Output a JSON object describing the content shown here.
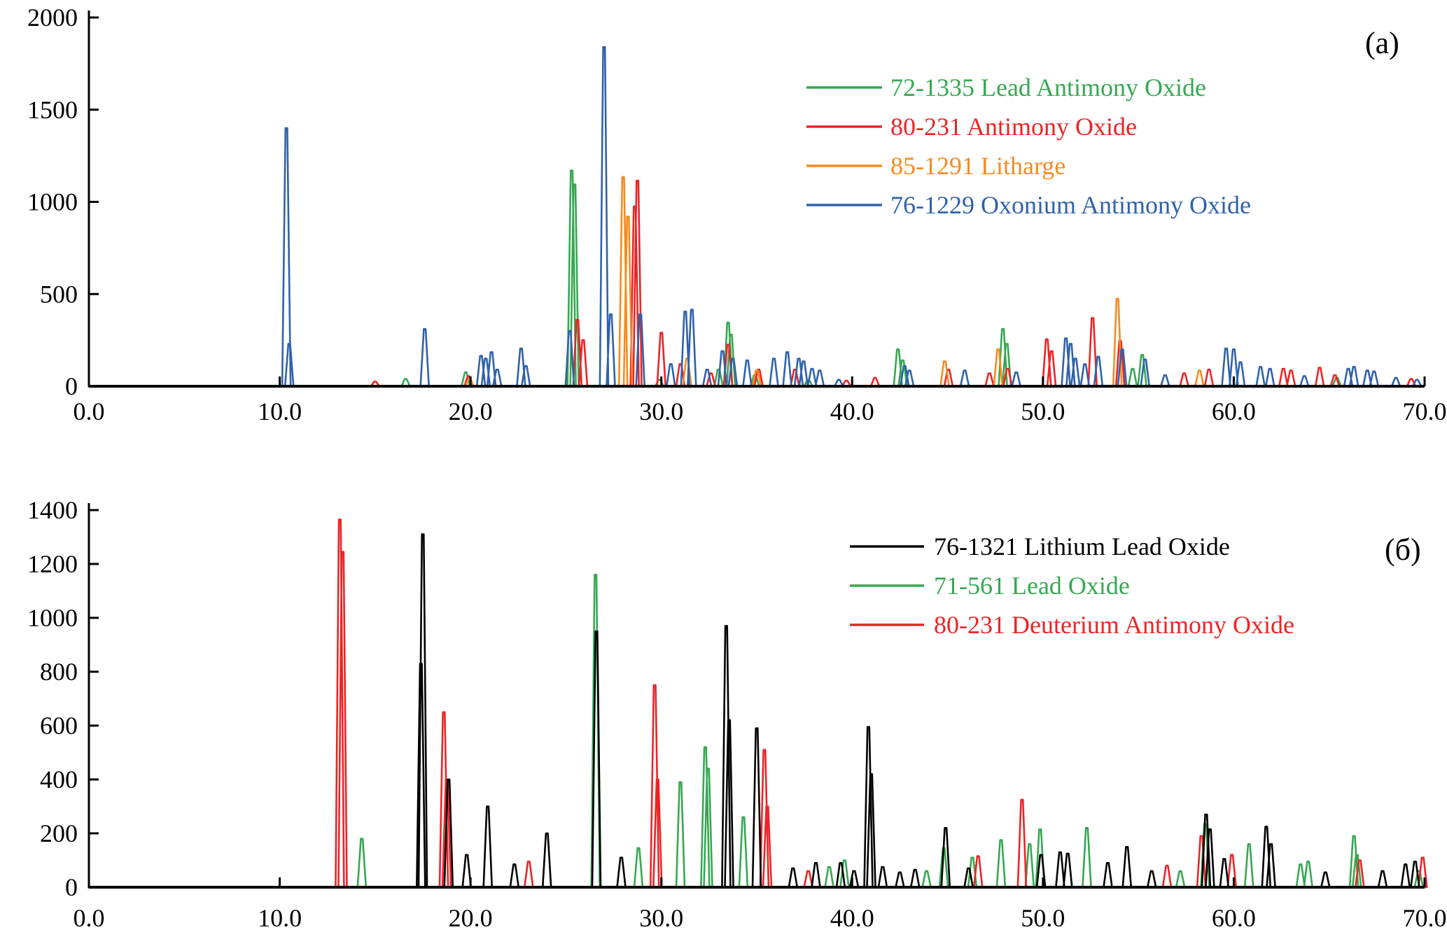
{
  "page": {
    "background": "#ffffff"
  },
  "chart_data": [
    {
      "id": "a",
      "type": "line",
      "panel_label": "(a)",
      "xlabel": "",
      "ylabel": "",
      "x_range": [
        0,
        70
      ],
      "y_range": [
        0,
        2000
      ],
      "x_ticks": [
        "0.0",
        "10.0",
        "20.0",
        "30.0",
        "40.0",
        "50.0",
        "60.0",
        "70.0"
      ],
      "y_ticks": [
        "0",
        "500",
        "1000",
        "1500",
        "2000"
      ],
      "grid": "off",
      "legend_position": "upper-right-inside",
      "legend": [
        {
          "label": "72-1335 Lead Antimony Oxide",
          "color": "#36a852"
        },
        {
          "label": "80-231 Antimony Oxide",
          "color": "#ec2426"
        },
        {
          "label": "85-1291 Litharge",
          "color": "#f68b1f"
        },
        {
          "label": "76-1229 Oxonium Antimony Oxide",
          "color": "#2f62ab"
        }
      ],
      "series": [
        {
          "name": "72-1335 Lead Antimony Oxide",
          "color": "#36a852",
          "peaks": [
            [
              16.6,
              40
            ],
            [
              19.75,
              75
            ],
            [
              25.3,
              1170
            ],
            [
              25.45,
              1095
            ],
            [
              29.9,
              35
            ],
            [
              33.0,
              90
            ],
            [
              33.5,
              345
            ],
            [
              33.65,
              280
            ],
            [
              34.9,
              60
            ],
            [
              37.7,
              35
            ],
            [
              42.4,
              200
            ],
            [
              42.65,
              140
            ],
            [
              47.9,
              310
            ],
            [
              48.1,
              230
            ],
            [
              54.7,
              95
            ],
            [
              55.2,
              170
            ],
            [
              65.4,
              45
            ]
          ]
        },
        {
          "name": "80-231 Antimony Oxide",
          "color": "#ec2426",
          "peaks": [
            [
              15.0,
              25
            ],
            [
              19.9,
              55
            ],
            [
              25.6,
              360
            ],
            [
              25.9,
              250
            ],
            [
              28.6,
              975
            ],
            [
              28.75,
              1115
            ],
            [
              30.0,
              290
            ],
            [
              31.0,
              120
            ],
            [
              32.6,
              70
            ],
            [
              33.5,
              225
            ],
            [
              35.1,
              90
            ],
            [
              37.0,
              90
            ],
            [
              39.7,
              30
            ],
            [
              41.2,
              45
            ],
            [
              45.05,
              90
            ],
            [
              47.2,
              70
            ],
            [
              48.15,
              95
            ],
            [
              50.2,
              255
            ],
            [
              50.45,
              190
            ],
            [
              52.6,
              370
            ],
            [
              54.05,
              245
            ],
            [
              57.4,
              70
            ],
            [
              58.7,
              90
            ],
            [
              62.6,
              95
            ],
            [
              63.0,
              85
            ],
            [
              64.5,
              100
            ],
            [
              65.3,
              60
            ],
            [
              69.3,
              40
            ]
          ]
        },
        {
          "name": "85-1291 Litharge",
          "color": "#f68b1f",
          "peaks": [
            [
              19.95,
              40
            ],
            [
              28.0,
              1135
            ],
            [
              28.25,
              920
            ],
            [
              31.35,
              150
            ],
            [
              35.0,
              85
            ],
            [
              44.85,
              135
            ],
            [
              47.65,
              200
            ],
            [
              53.9,
              475
            ],
            [
              58.2,
              85
            ]
          ]
        },
        {
          "name": "76-1229 Oxonium Antimony Oxide",
          "color": "#2f62ab",
          "peaks": [
            [
              10.35,
              1400
            ],
            [
              10.5,
              230
            ],
            [
              17.6,
              310
            ],
            [
              20.55,
              165
            ],
            [
              20.8,
              150
            ],
            [
              21.1,
              185
            ],
            [
              21.4,
              90
            ],
            [
              22.65,
              205
            ],
            [
              22.9,
              110
            ],
            [
              25.2,
              300
            ],
            [
              27.0,
              1840
            ],
            [
              27.35,
              390
            ],
            [
              28.9,
              390
            ],
            [
              30.5,
              120
            ],
            [
              31.25,
              405
            ],
            [
              31.6,
              415
            ],
            [
              32.4,
              90
            ],
            [
              33.2,
              190
            ],
            [
              33.75,
              150
            ],
            [
              34.5,
              140
            ],
            [
              35.9,
              150
            ],
            [
              36.6,
              185
            ],
            [
              37.2,
              150
            ],
            [
              37.45,
              135
            ],
            [
              37.9,
              95
            ],
            [
              38.3,
              85
            ],
            [
              39.3,
              35
            ],
            [
              42.75,
              110
            ],
            [
              43.0,
              85
            ],
            [
              45.9,
              85
            ],
            [
              48.6,
              75
            ],
            [
              51.2,
              260
            ],
            [
              51.45,
              230
            ],
            [
              51.7,
              150
            ],
            [
              52.2,
              120
            ],
            [
              52.9,
              160
            ],
            [
              54.15,
              200
            ],
            [
              55.35,
              145
            ],
            [
              56.4,
              60
            ],
            [
              59.6,
              205
            ],
            [
              60.0,
              200
            ],
            [
              60.35,
              130
            ],
            [
              61.4,
              105
            ],
            [
              61.9,
              95
            ],
            [
              63.7,
              55
            ],
            [
              66.0,
              95
            ],
            [
              66.3,
              105
            ],
            [
              67.0,
              85
            ],
            [
              67.35,
              80
            ],
            [
              68.5,
              45
            ],
            [
              69.6,
              35
            ]
          ]
        }
      ]
    },
    {
      "id": "b",
      "type": "line",
      "panel_label": "(б)",
      "xlabel": "",
      "ylabel": "",
      "x_range": [
        0,
        70
      ],
      "y_range": [
        0,
        1400
      ],
      "x_ticks": [
        "0.0",
        "10.0",
        "20.0",
        "30.0",
        "40.0",
        "50.0",
        "60.0",
        "70.0"
      ],
      "y_ticks": [
        "0",
        "200",
        "400",
        "600",
        "800",
        "1000",
        "1200",
        "1400"
      ],
      "grid": "off",
      "legend_position": "upper-right-inside",
      "legend": [
        {
          "label": "76-1321 Lithium Lead Oxide",
          "color": "#000000"
        },
        {
          "label": "71-561 Lead Oxide",
          "color": "#36a852"
        },
        {
          "label": "80-231 Deuterium Antimony Oxide",
          "color": "#ec2426"
        }
      ],
      "series": [
        {
          "name": "71-561 Lead Oxide",
          "color": "#36a852",
          "peaks": [
            [
              14.3,
              180
            ],
            [
              26.55,
              1160
            ],
            [
              28.8,
              145
            ],
            [
              31.0,
              390
            ],
            [
              32.3,
              520
            ],
            [
              32.45,
              440
            ],
            [
              34.3,
              260
            ],
            [
              38.8,
              75
            ],
            [
              39.6,
              100
            ],
            [
              43.9,
              60
            ],
            [
              44.8,
              145
            ],
            [
              46.3,
              110
            ],
            [
              47.8,
              175
            ],
            [
              49.3,
              160
            ],
            [
              49.85,
              215
            ],
            [
              52.3,
              220
            ],
            [
              57.2,
              60
            ],
            [
              58.5,
              235
            ],
            [
              60.8,
              160
            ],
            [
              63.5,
              85
            ],
            [
              63.9,
              95
            ],
            [
              66.3,
              190
            ],
            [
              66.45,
              120
            ],
            [
              69.7,
              60
            ]
          ]
        },
        {
          "name": "80-231 Deuterium Antimony Oxide",
          "color": "#ec2426",
          "peaks": [
            [
              13.15,
              1365
            ],
            [
              13.3,
              1245
            ],
            [
              18.6,
              650
            ],
            [
              18.75,
              400
            ],
            [
              23.05,
              95
            ],
            [
              29.65,
              750
            ],
            [
              29.8,
              400
            ],
            [
              35.4,
              510
            ],
            [
              35.55,
              300
            ],
            [
              37.7,
              60
            ],
            [
              46.6,
              115
            ],
            [
              48.9,
              325
            ],
            [
              56.5,
              80
            ],
            [
              58.3,
              190
            ],
            [
              59.9,
              120
            ],
            [
              66.6,
              100
            ],
            [
              69.9,
              110
            ]
          ]
        },
        {
          "name": "76-1321 Lithium Lead Oxide",
          "color": "#000000",
          "peaks": [
            [
              17.4,
              830
            ],
            [
              17.5,
              1310
            ],
            [
              18.85,
              400
            ],
            [
              19.8,
              120
            ],
            [
              20.9,
              300
            ],
            [
              22.3,
              85
            ],
            [
              24.0,
              200
            ],
            [
              26.6,
              950
            ],
            [
              27.9,
              110
            ],
            [
              33.4,
              970
            ],
            [
              33.55,
              620
            ],
            [
              35.0,
              590
            ],
            [
              36.9,
              70
            ],
            [
              38.1,
              90
            ],
            [
              39.4,
              90
            ],
            [
              40.1,
              60
            ],
            [
              40.85,
              595
            ],
            [
              41.0,
              420
            ],
            [
              41.6,
              75
            ],
            [
              42.5,
              55
            ],
            [
              43.3,
              65
            ],
            [
              44.9,
              220
            ],
            [
              46.1,
              70
            ],
            [
              49.9,
              120
            ],
            [
              50.9,
              130
            ],
            [
              51.3,
              125
            ],
            [
              53.4,
              90
            ],
            [
              54.4,
              150
            ],
            [
              55.7,
              60
            ],
            [
              58.55,
              270
            ],
            [
              58.75,
              215
            ],
            [
              59.5,
              105
            ],
            [
              61.7,
              225
            ],
            [
              61.95,
              160
            ],
            [
              64.8,
              55
            ],
            [
              67.8,
              60
            ],
            [
              69.0,
              85
            ],
            [
              69.5,
              95
            ]
          ]
        }
      ]
    }
  ]
}
